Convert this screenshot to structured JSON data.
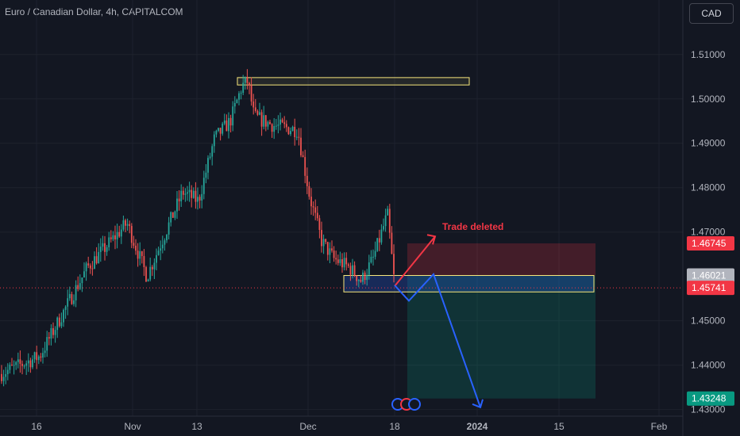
{
  "header": {
    "title": "Euro / Canadian Dollar, 4h, CAPITALCOM",
    "currency_button": "CAD"
  },
  "colors": {
    "background": "#131722",
    "up": "#26a69a",
    "down": "#ef5350",
    "grid": "#1e222d",
    "axis_text": "#b2b5be",
    "highlight_box": "#f7e77c",
    "projection": "#2962ff",
    "annotation": "#f23645"
  },
  "annotation_text": "Trade deleted",
  "chart_data": {
    "type": "candlestick",
    "title": "Euro / Canadian Dollar, 4h, CAPITALCOM",
    "ylim": [
      1.4285,
      1.5205
    ],
    "yticks": [
      "1.51000",
      "1.50000",
      "1.49000",
      "1.48000",
      "1.47000",
      "1.45000",
      "1.44000",
      "1.43000"
    ],
    "xticks": [
      "16",
      "Nov",
      "13",
      "Dec",
      "18",
      "2024",
      "15",
      "Feb"
    ],
    "price_badges": [
      {
        "label": "1.46745",
        "value": 1.46745,
        "color": "#f23645"
      },
      {
        "label": "1.46021",
        "value": 1.46021,
        "color": "#b2b5be"
      },
      {
        "label": "1.45741",
        "value": 1.45741,
        "color": "#f23645"
      },
      {
        "label": "1.43248",
        "value": 1.43248,
        "color": "#089981"
      }
    ],
    "current_price": 1.45741,
    "trajectory": [
      [
        0,
        1.438
      ],
      [
        50,
        1.442
      ],
      [
        110,
        1.462
      ],
      [
        160,
        1.472
      ],
      [
        185,
        1.46
      ],
      [
        230,
        1.479
      ],
      [
        250,
        1.477
      ],
      [
        270,
        1.491
      ],
      [
        290,
        1.495
      ],
      [
        305,
        1.503
      ],
      [
        312,
        1.504
      ],
      [
        320,
        1.496
      ],
      [
        345,
        1.494
      ],
      [
        375,
        1.493
      ],
      [
        390,
        1.478
      ],
      [
        405,
        1.468
      ],
      [
        420,
        1.464
      ],
      [
        440,
        1.462
      ],
      [
        455,
        1.459
      ],
      [
        470,
        1.464
      ],
      [
        488,
        1.474
      ],
      [
        497,
        1.458
      ]
    ],
    "resistance_zone": {
      "top": 1.5048,
      "bottom": 1.5035
    },
    "support_zone": {
      "top": 1.46021,
      "bottom": 1.4565
    },
    "stop_zone": {
      "top": 1.46745,
      "bottom": 1.46021
    },
    "target_zone": {
      "top": 1.46021,
      "bottom": 1.43248
    },
    "arrow_up": [
      [
        497,
        1.4578
      ],
      [
        548,
        1.469
      ]
    ],
    "projection_path": [
      [
        497,
        1.458
      ],
      [
        515,
        1.4545
      ],
      [
        546,
        1.4605
      ],
      [
        605,
        1.4305
      ]
    ]
  }
}
